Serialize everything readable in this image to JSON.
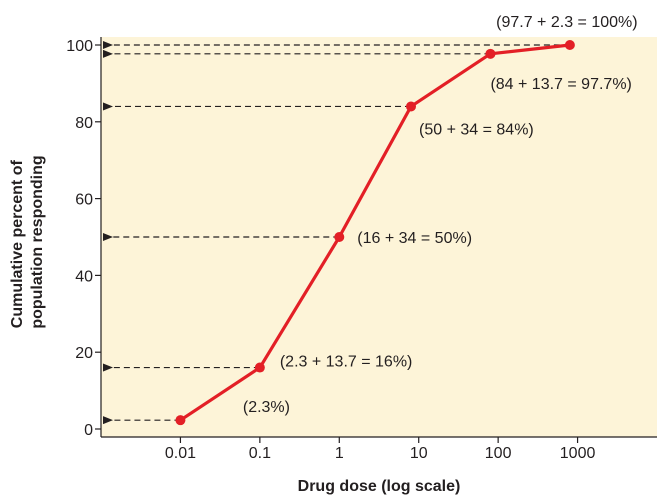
{
  "chart_data": {
    "type": "line",
    "title": "",
    "xlabel": "Drug dose (log scale)",
    "ylabel_lines": [
      "Cumulative percent of",
      "population responding"
    ],
    "x_scale": "log",
    "x_ticks": [
      {
        "value": 0.01,
        "label": "0.01"
      },
      {
        "value": 0.1,
        "label": "0.1"
      },
      {
        "value": 1,
        "label": "1"
      },
      {
        "value": 10,
        "label": "10"
      },
      {
        "value": 100,
        "label": "100"
      },
      {
        "value": 1000,
        "label": "1000"
      }
    ],
    "y_ticks": [
      {
        "value": 0,
        "label": "0"
      },
      {
        "value": 20,
        "label": "20"
      },
      {
        "value": 40,
        "label": "40"
      },
      {
        "value": 60,
        "label": "60"
      },
      {
        "value": 80,
        "label": "80"
      },
      {
        "value": 100,
        "label": "100"
      }
    ],
    "ylim": [
      0,
      100
    ],
    "xlim": [
      0.001,
      10000
    ],
    "grid": false,
    "series": [
      {
        "points": [
          {
            "x": 0.01,
            "y": 2.3
          },
          {
            "x": 0.1,
            "y": 16
          },
          {
            "x": 1,
            "y": 50
          },
          {
            "x": 8,
            "y": 84
          },
          {
            "x": 80,
            "y": 97.7
          },
          {
            "x": 800,
            "y": 100
          }
        ]
      }
    ],
    "annotations": [
      {
        "text": "(2.3%)",
        "x": 0.01,
        "y": 2.3
      },
      {
        "text": "(2.3 + 13.7 = 16%)",
        "x": 0.1,
        "y": 16
      },
      {
        "text": "(16 + 34 = 50%)",
        "x": 1,
        "y": 50
      },
      {
        "text": "(50 + 34 = 84%)",
        "x": 8,
        "y": 84
      },
      {
        "text": "(84 + 13.7 = 97.7%)",
        "x": 80,
        "y": 97.7
      },
      {
        "text": "(97.7 + 2.3 = 100%)",
        "x": 800,
        "y": 100
      }
    ],
    "colors": {
      "plot_background": "#fdf4d8",
      "line": "#e31f26",
      "marker": "#e31f26",
      "guide_arrows": "#231f20",
      "text": "#231f20"
    }
  }
}
